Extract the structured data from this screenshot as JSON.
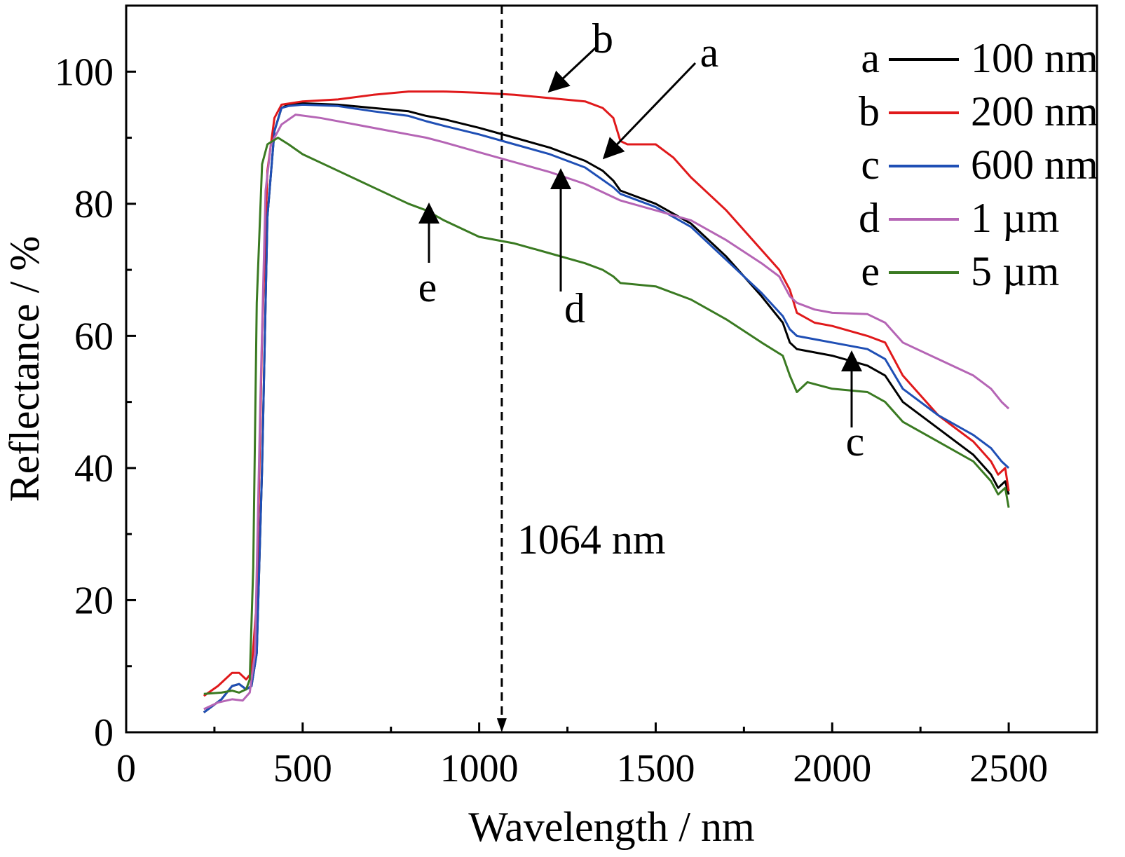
{
  "chart_data": {
    "type": "line",
    "xlabel": "Wavelength / nm",
    "ylabel": "Reflectance / %",
    "xlim": [
      0,
      2750
    ],
    "ylim": [
      0,
      110
    ],
    "xticks": [
      0,
      500,
      1000,
      1500,
      2000,
      2500
    ],
    "yticks": [
      0,
      20,
      40,
      60,
      80,
      100
    ],
    "grid": false,
    "legend_position": "top-right",
    "series": [
      {
        "key": "a",
        "name": "100 nm",
        "color": "#000000",
        "points": [
          [
            220,
            3
          ],
          [
            270,
            5
          ],
          [
            300,
            7
          ],
          [
            320,
            7.3
          ],
          [
            340,
            6.5
          ],
          [
            355,
            7
          ],
          [
            370,
            12
          ],
          [
            385,
            40
          ],
          [
            400,
            78
          ],
          [
            420,
            91
          ],
          [
            440,
            94.5
          ],
          [
            460,
            95
          ],
          [
            500,
            95.2
          ],
          [
            600,
            95
          ],
          [
            700,
            94.5
          ],
          [
            800,
            94
          ],
          [
            850,
            93.3
          ],
          [
            900,
            92.8
          ],
          [
            1000,
            91.5
          ],
          [
            1100,
            90
          ],
          [
            1200,
            88.5
          ],
          [
            1300,
            86.5
          ],
          [
            1350,
            85
          ],
          [
            1380,
            83.5
          ],
          [
            1400,
            82
          ],
          [
            1500,
            80
          ],
          [
            1600,
            77
          ],
          [
            1700,
            72
          ],
          [
            1800,
            66
          ],
          [
            1860,
            62
          ],
          [
            1880,
            59
          ],
          [
            1900,
            58
          ],
          [
            1950,
            57.5
          ],
          [
            2000,
            57
          ],
          [
            2100,
            55.5
          ],
          [
            2150,
            54
          ],
          [
            2200,
            50
          ],
          [
            2300,
            46
          ],
          [
            2400,
            42
          ],
          [
            2450,
            39
          ],
          [
            2470,
            37
          ],
          [
            2490,
            38
          ],
          [
            2500,
            36
          ]
        ]
      },
      {
        "key": "b",
        "name": "200 nm",
        "color": "#e0191b",
        "points": [
          [
            220,
            5.5
          ],
          [
            260,
            7
          ],
          [
            300,
            9
          ],
          [
            320,
            9
          ],
          [
            340,
            8
          ],
          [
            355,
            9
          ],
          [
            370,
            20
          ],
          [
            385,
            60
          ],
          [
            400,
            85
          ],
          [
            420,
            93
          ],
          [
            440,
            95
          ],
          [
            500,
            95.5
          ],
          [
            600,
            95.8
          ],
          [
            700,
            96.5
          ],
          [
            800,
            97
          ],
          [
            900,
            97
          ],
          [
            1000,
            96.8
          ],
          [
            1100,
            96.5
          ],
          [
            1200,
            96
          ],
          [
            1300,
            95.5
          ],
          [
            1350,
            94.5
          ],
          [
            1380,
            93
          ],
          [
            1400,
            89.5
          ],
          [
            1420,
            89
          ],
          [
            1500,
            89
          ],
          [
            1550,
            87
          ],
          [
            1600,
            84
          ],
          [
            1700,
            79
          ],
          [
            1800,
            73
          ],
          [
            1850,
            70
          ],
          [
            1880,
            67
          ],
          [
            1900,
            63.5
          ],
          [
            1950,
            62
          ],
          [
            2000,
            61.5
          ],
          [
            2100,
            60
          ],
          [
            2150,
            59
          ],
          [
            2200,
            54
          ],
          [
            2300,
            48
          ],
          [
            2400,
            44
          ],
          [
            2450,
            41
          ],
          [
            2470,
            39
          ],
          [
            2490,
            40
          ],
          [
            2500,
            36.5
          ]
        ]
      },
      {
        "key": "c",
        "name": "600 nm",
        "color": "#1f4fb5",
        "points": [
          [
            220,
            3
          ],
          [
            270,
            5
          ],
          [
            300,
            7
          ],
          [
            320,
            7.3
          ],
          [
            340,
            6.5
          ],
          [
            355,
            7
          ],
          [
            370,
            12
          ],
          [
            385,
            40
          ],
          [
            400,
            78
          ],
          [
            420,
            91
          ],
          [
            440,
            94.5
          ],
          [
            460,
            94.8
          ],
          [
            500,
            95
          ],
          [
            600,
            94.8
          ],
          [
            700,
            94
          ],
          [
            800,
            93.3
          ],
          [
            850,
            92.5
          ],
          [
            900,
            91.8
          ],
          [
            1000,
            90.5
          ],
          [
            1100,
            89
          ],
          [
            1200,
            87.5
          ],
          [
            1300,
            85.5
          ],
          [
            1380,
            82.5
          ],
          [
            1400,
            81.5
          ],
          [
            1500,
            79.5
          ],
          [
            1600,
            76.5
          ],
          [
            1700,
            71.5
          ],
          [
            1800,
            66.5
          ],
          [
            1860,
            63
          ],
          [
            1880,
            61
          ],
          [
            1900,
            60
          ],
          [
            1950,
            59.5
          ],
          [
            2000,
            59
          ],
          [
            2100,
            58
          ],
          [
            2150,
            56.5
          ],
          [
            2200,
            52
          ],
          [
            2300,
            48
          ],
          [
            2400,
            45
          ],
          [
            2450,
            43
          ],
          [
            2480,
            41
          ],
          [
            2500,
            40
          ]
        ]
      },
      {
        "key": "d",
        "name": "1 µm",
        "color": "#b565b5",
        "points": [
          [
            220,
            3.5
          ],
          [
            260,
            4.5
          ],
          [
            300,
            5
          ],
          [
            330,
            4.8
          ],
          [
            350,
            6
          ],
          [
            365,
            12
          ],
          [
            380,
            50
          ],
          [
            395,
            82
          ],
          [
            410,
            89
          ],
          [
            440,
            92
          ],
          [
            480,
            93.5
          ],
          [
            550,
            93
          ],
          [
            650,
            92
          ],
          [
            750,
            91
          ],
          [
            800,
            90.5
          ],
          [
            850,
            90
          ],
          [
            900,
            89.3
          ],
          [
            1000,
            87.8
          ],
          [
            1100,
            86.3
          ],
          [
            1200,
            84.8
          ],
          [
            1300,
            83
          ],
          [
            1400,
            80.5
          ],
          [
            1500,
            79
          ],
          [
            1600,
            77.5
          ],
          [
            1700,
            74.5
          ],
          [
            1800,
            71
          ],
          [
            1850,
            69
          ],
          [
            1880,
            66
          ],
          [
            1900,
            65
          ],
          [
            1950,
            64
          ],
          [
            2000,
            63.5
          ],
          [
            2100,
            63.3
          ],
          [
            2150,
            62
          ],
          [
            2200,
            59
          ],
          [
            2300,
            56.5
          ],
          [
            2400,
            54
          ],
          [
            2450,
            52
          ],
          [
            2480,
            50
          ],
          [
            2500,
            49
          ]
        ]
      },
      {
        "key": "e",
        "name": "5 µm",
        "color": "#3a7a22",
        "points": [
          [
            220,
            5.8
          ],
          [
            270,
            6
          ],
          [
            300,
            6.3
          ],
          [
            320,
            6
          ],
          [
            340,
            6.5
          ],
          [
            350,
            8
          ],
          [
            360,
            25
          ],
          [
            370,
            65
          ],
          [
            385,
            86
          ],
          [
            400,
            89
          ],
          [
            430,
            90
          ],
          [
            460,
            89
          ],
          [
            500,
            87.5
          ],
          [
            600,
            85
          ],
          [
            700,
            82.5
          ],
          [
            800,
            80
          ],
          [
            850,
            79
          ],
          [
            900,
            77.5
          ],
          [
            1000,
            75
          ],
          [
            1100,
            74
          ],
          [
            1200,
            72.5
          ],
          [
            1300,
            71
          ],
          [
            1350,
            70
          ],
          [
            1380,
            69
          ],
          [
            1400,
            68
          ],
          [
            1500,
            67.5
          ],
          [
            1600,
            65.5
          ],
          [
            1700,
            62.5
          ],
          [
            1800,
            59
          ],
          [
            1860,
            57
          ],
          [
            1880,
            54
          ],
          [
            1900,
            51.5
          ],
          [
            1930,
            53
          ],
          [
            2000,
            52
          ],
          [
            2100,
            51.5
          ],
          [
            2150,
            50
          ],
          [
            2200,
            47
          ],
          [
            2300,
            44
          ],
          [
            2400,
            41
          ],
          [
            2450,
            38
          ],
          [
            2470,
            36
          ],
          [
            2490,
            37
          ],
          [
            2500,
            34
          ]
        ]
      }
    ],
    "reference_line": {
      "x": 1064,
      "label": "1064 nm"
    },
    "annotations": [
      {
        "text": "a",
        "key": "a"
      },
      {
        "text": "b",
        "key": "b"
      },
      {
        "text": "c",
        "key": "c"
      },
      {
        "text": "d",
        "key": "d"
      },
      {
        "text": "e",
        "key": "e"
      }
    ],
    "legend": [
      {
        "key": "a",
        "label": "100 nm"
      },
      {
        "key": "b",
        "label": "200 nm"
      },
      {
        "key": "c",
        "label": "600 nm"
      },
      {
        "key": "d",
        "label": "1 µm"
      },
      {
        "key": "e",
        "label": "5 µm"
      }
    ]
  }
}
